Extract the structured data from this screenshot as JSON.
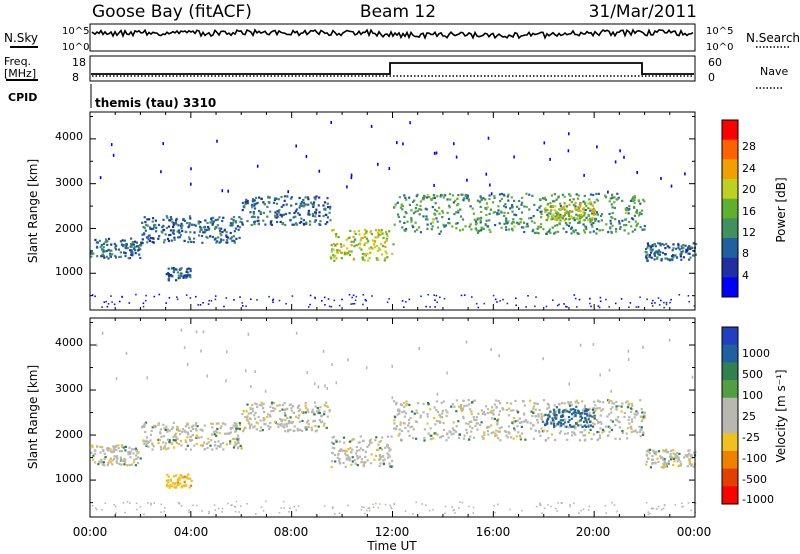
{
  "header": {
    "station": "Goose Bay (fitACF)",
    "beam": "Beam 12",
    "date": "31/Mar/2011"
  },
  "info_panels": {
    "nsky_label": "N.Sky",
    "nsearch_label": "N.Search",
    "nsky_ticks": [
      "10^5",
      "10^0"
    ],
    "nsearch_ticks": [
      "10^5",
      "10^0"
    ],
    "freq_label_1": "Freq.",
    "freq_label_2": "[MHz]",
    "freq_ticks": [
      "18",
      "8"
    ],
    "nave_label": "Nave",
    "nave_ticks": [
      "60",
      "0"
    ],
    "cpid_label": "CPID",
    "cpid_value": "themis (tau) 3310"
  },
  "colorbars": {
    "power": {
      "label": "Power [dB]",
      "ticks": [
        "28",
        "24",
        "20",
        "16",
        "12",
        "8",
        "4"
      ],
      "colors": [
        "#0000ff",
        "#2030a0",
        "#2060a0",
        "#409060",
        "#60b030",
        "#c0d020",
        "#f0a000",
        "#ff6000",
        "#ff0000"
      ]
    },
    "velocity": {
      "label": "Velocity [m s⁻¹]",
      "ticks": [
        "1000",
        "500",
        "100",
        "25",
        "-25",
        "-100",
        "-500",
        "-1000"
      ],
      "colors": [
        "#2040c0",
        "#2060a0",
        "#308050",
        "#50a040",
        "#b8b8b0",
        "#b8b8b0",
        "#f0c020",
        "#f08000",
        "#e04000",
        "#ff0000"
      ]
    }
  },
  "axes": {
    "ylabel": "Slant Range [km]",
    "yticks": [
      "4000",
      "3000",
      "2000",
      "1000"
    ],
    "xticks": [
      "00:00",
      "04:00",
      "08:00",
      "12:00",
      "16:00",
      "20:00",
      "00:00"
    ],
    "xlabel": "Time UT"
  },
  "chart_data": [
    {
      "type": "heatmap",
      "title": "",
      "xlabel": "",
      "ylabel": "Slant Range [km]",
      "xlim": [
        0,
        24
      ],
      "ylim": [
        180,
        4600
      ],
      "colorbar": "Power [dB]",
      "clim": [
        0,
        30
      ],
      "patches": [
        {
          "t": [
            0.0,
            2.0
          ],
          "r": [
            1350,
            1800
          ],
          "value": 8
        },
        {
          "t": [
            2.0,
            6.0
          ],
          "r": [
            1700,
            2300
          ],
          "value": 8
        },
        {
          "t": [
            3.0,
            4.0
          ],
          "r": [
            850,
            1150
          ],
          "value": 8
        },
        {
          "t": [
            6.0,
            9.5
          ],
          "r": [
            2100,
            2750
          ],
          "value": 8
        },
        {
          "t": [
            9.5,
            12.0
          ],
          "r": [
            1300,
            2000
          ],
          "value": 18
        },
        {
          "t": [
            12.0,
            22.0
          ],
          "r": [
            1900,
            2800
          ],
          "value": 12
        },
        {
          "t": [
            18.0,
            20.0
          ],
          "r": [
            2200,
            2600
          ],
          "value": 18
        },
        {
          "t": [
            22.0,
            24.0
          ],
          "r": [
            1300,
            1700
          ],
          "value": 8
        }
      ]
    },
    {
      "type": "heatmap",
      "title": "",
      "xlabel": "Time UT",
      "ylabel": "Slant Range [km]",
      "xlim": [
        0,
        24
      ],
      "ylim": [
        180,
        4600
      ],
      "colorbar": "Velocity [m s⁻¹]",
      "clim": [
        -1000,
        1000
      ],
      "patches": [
        {
          "t": [
            0.0,
            2.0
          ],
          "r": [
            1350,
            1800
          ],
          "value": 0
        },
        {
          "t": [
            2.0,
            6.0
          ],
          "r": [
            1700,
            2300
          ],
          "value": 0
        },
        {
          "t": [
            3.0,
            4.0
          ],
          "r": [
            850,
            1150
          ],
          "value": -200
        },
        {
          "t": [
            6.0,
            9.5
          ],
          "r": [
            2100,
            2750
          ],
          "value": 0
        },
        {
          "t": [
            9.5,
            12.0
          ],
          "r": [
            1300,
            2000
          ],
          "value": 0
        },
        {
          "t": [
            12.0,
            22.0
          ],
          "r": [
            1900,
            2800
          ],
          "value": 0
        },
        {
          "t": [
            18.0,
            20.0
          ],
          "r": [
            2200,
            2600
          ],
          "value": 300
        },
        {
          "t": [
            22.0,
            24.0
          ],
          "r": [
            1300,
            1700
          ],
          "value": 0
        }
      ]
    }
  ]
}
